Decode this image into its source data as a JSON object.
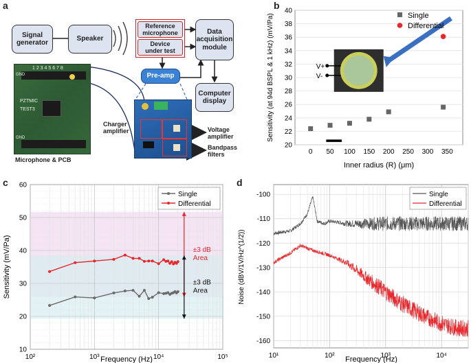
{
  "panels": {
    "a": "a",
    "b": "b",
    "c": "c",
    "d": "d"
  },
  "diagram": {
    "signal_generator": "Signal\ngenerator",
    "speaker": "Speaker",
    "reference_microphone": "Reference\nmicrophone",
    "device_under_test": "Device\nunder test",
    "daq": "Data\nacquisition\nmodule",
    "preamp": "Pre-amp",
    "computer_display": "Computer\ndisplay",
    "charger_amplifier": "Charger\namplifier",
    "voltage_amplifier": "Voltage\namplifier",
    "bandpass_filters": "Bandpass\nfilters",
    "mic_pcb_caption": "Microphone & PCB",
    "pcb_text": {
      "top_numbers": "1 2 3 4 5 6 7 8",
      "gnd": "GND",
      "mark1": "PZTMIC",
      "mark2": "TEST3"
    }
  },
  "chart_data": [
    {
      "panel": "b",
      "type": "scatter",
      "xlabel": "Inner radius (R) (μm)",
      "ylabel": "Sensitivity (at 94d BSPL & 1 kHz) (mV/Pa)",
      "xlim": [
        -40,
        390
      ],
      "ylim": [
        20,
        40
      ],
      "xticks": [
        0,
        50,
        100,
        150,
        200,
        250,
        300,
        350
      ],
      "yticks": [
        20,
        22,
        24,
        26,
        28,
        30,
        32,
        34,
        36,
        38,
        40
      ],
      "series": [
        {
          "name": "Single",
          "color": "#666666",
          "marker": "square",
          "x": [
            0,
            50,
            100,
            150,
            200,
            340
          ],
          "y": [
            22.4,
            22.9,
            23.2,
            23.8,
            24.9,
            25.6
          ]
        },
        {
          "name": "Differential",
          "color": "#e8262b",
          "marker": "circle",
          "x": [
            340
          ],
          "y": [
            36.1
          ]
        }
      ],
      "legend": "top-right",
      "inset_labels": [
        "V+",
        "V-"
      ]
    },
    {
      "panel": "c",
      "type": "line",
      "xlabel": "Frequency (Hz)",
      "ylabel": "Sensitivity (mV/Pa)",
      "xscale": "log",
      "xlim": [
        100,
        100000
      ],
      "ylim": [
        10,
        60
      ],
      "xticks": [
        "10²",
        "10³",
        "10⁴",
        "10⁵"
      ],
      "yticks": [
        10,
        20,
        30,
        40,
        50,
        60
      ],
      "series": [
        {
          "name": "Single",
          "color": "#6b6b6b",
          "x": [
            200,
            500,
            1000,
            2000,
            3000,
            4000,
            5000,
            6000,
            7000,
            8000,
            10000,
            12000,
            13000,
            14000,
            15000,
            16000,
            17000,
            18000,
            19000,
            20000
          ],
          "y": [
            23.3,
            25.9,
            25.6,
            27.1,
            27.7,
            27.9,
            26.1,
            27.9,
            25.4,
            25.8,
            27.2,
            26.9,
            27.0,
            27.2,
            26.7,
            27.0,
            27.2,
            27.5,
            27.1,
            27.5
          ]
        },
        {
          "name": "Differential",
          "color": "#e8262b",
          "x": [
            200,
            500,
            1000,
            2000,
            3000,
            4000,
            5000,
            6000,
            7000,
            8000,
            10000,
            12000,
            13000,
            14000,
            15000,
            16000,
            17000,
            18000,
            19000,
            20000
          ],
          "y": [
            33.6,
            36.3,
            36.8,
            37.3,
            38.6,
            37.6,
            37.6,
            36.7,
            36.8,
            36.8,
            36.0,
            37.2,
            36.7,
            36.8,
            36.1,
            36.6,
            35.9,
            36.4,
            36.1,
            36.6
          ]
        }
      ],
      "legend": "top-right",
      "annotations": [
        {
          "text": "±3 dB\nArea",
          "color": "#e8262b",
          "y_range": [
            25.9,
            51.7
          ]
        },
        {
          "text": "±3 dB\nArea",
          "color": "#111111",
          "y_range": [
            19.3,
            38.5
          ]
        }
      ]
    },
    {
      "panel": "d",
      "type": "line",
      "xlabel": "Frequency (Hz)",
      "ylabel": "Noise (dBV/1V/Hz^(1/2))",
      "xscale": "log",
      "xlim": [
        10,
        30000
      ],
      "ylim": [
        -163,
        -96
      ],
      "xticks": [
        "10¹",
        "10²",
        "10³",
        "10⁴"
      ],
      "yticks": [
        -160,
        -150,
        -140,
        -130,
        -120,
        -110,
        -100
      ],
      "series": [
        {
          "name": "Single",
          "color": "#555555",
          "x": [
            10,
            20,
            30,
            40,
            50,
            60,
            80,
            100,
            200,
            500,
            1000,
            5000,
            10000,
            25000
          ],
          "y": [
            -116,
            -115,
            -112,
            -108,
            -101,
            -111,
            -112,
            -111,
            -112,
            -112,
            -112,
            -112,
            -112,
            -112
          ]
        },
        {
          "name": "Differential",
          "color": "#e8262b",
          "x": [
            10,
            20,
            30,
            50,
            100,
            200,
            300,
            500,
            1000,
            2000,
            5000,
            10000,
            20000,
            25000
          ],
          "y": [
            -128,
            -124,
            -121,
            -123,
            -125,
            -128,
            -131,
            -135,
            -140,
            -145,
            -150,
            -153,
            -155,
            -155
          ]
        }
      ],
      "legend": "top-right"
    }
  ]
}
